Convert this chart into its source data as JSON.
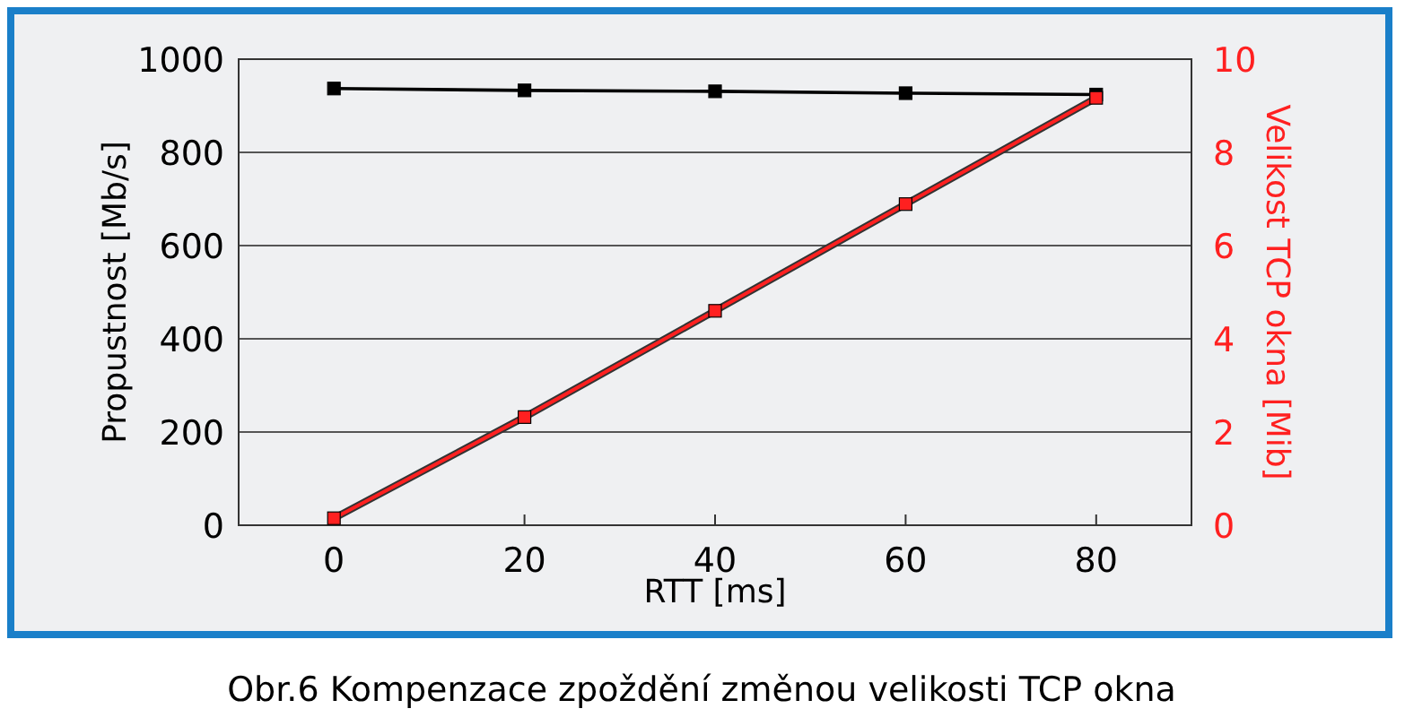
{
  "chart_data": {
    "type": "line",
    "title": "Obr.6 Kompenzace zpoždění změnou velikosti TCP okna",
    "xlabel": "RTT [ms]",
    "ylabel": "Propustnost [Mb/s]",
    "y2label": "Velikost TCP okna [Mib]",
    "x": [
      0,
      20,
      40,
      60,
      80
    ],
    "series": [
      {
        "color": "#000000",
        "values": [
          937,
          933,
          931,
          927,
          924
        ]
      },
      {
        "color": "#ff2020",
        "axis": "y2",
        "values": [
          0.15,
          2.32,
          4.6,
          6.89,
          9.17
        ]
      }
    ],
    "xlim": [
      -10,
      90
    ],
    "xticks": [
      0,
      20,
      40,
      60,
      80
    ],
    "ylim": [
      0,
      1000
    ],
    "yticks": [
      0,
      200,
      400,
      600,
      800,
      1000
    ],
    "y2lim": [
      0,
      10
    ],
    "y2ticks": [
      0,
      2,
      4,
      6,
      8,
      10
    ],
    "grid": "y",
    "marker": "square",
    "line_style": "solid"
  }
}
